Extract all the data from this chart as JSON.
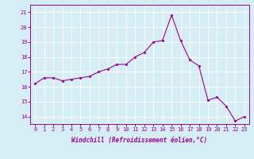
{
  "x": [
    0,
    1,
    2,
    3,
    4,
    5,
    6,
    7,
    8,
    9,
    10,
    11,
    12,
    13,
    14,
    15,
    16,
    17,
    18,
    19,
    20,
    21,
    22,
    23
  ],
  "y": [
    16.2,
    16.6,
    16.6,
    16.4,
    16.5,
    16.6,
    16.7,
    17.0,
    17.2,
    17.5,
    17.5,
    18.0,
    18.3,
    19.0,
    19.1,
    20.8,
    19.1,
    17.8,
    17.4,
    15.1,
    15.3,
    14.7,
    13.7,
    14.0
  ],
  "line_color": "#990099",
  "marker": "D",
  "marker_size": 1.5,
  "line_width": 0.8,
  "xlabel": "Windchill (Refroidissement éolien,°C)",
  "xlabel_fontsize": 5.5,
  "ylabel_ticks": [
    14,
    15,
    16,
    17,
    18,
    19,
    20,
    21
  ],
  "xtick_labels": [
    "0",
    "1",
    "2",
    "3",
    "4",
    "5",
    "6",
    "7",
    "8",
    "9",
    "10",
    "11",
    "12",
    "13",
    "14",
    "15",
    "16",
    "17",
    "18",
    "19",
    "20",
    "21",
    "22",
    "23"
  ],
  "ylim": [
    13.5,
    21.5
  ],
  "xlim": [
    -0.5,
    23.5
  ],
  "bg_color": "#d5edf5",
  "grid_color": "#b0cfd8",
  "tick_color": "#990099",
  "tick_fontsize": 5.0,
  "spine_color": "#990099"
}
